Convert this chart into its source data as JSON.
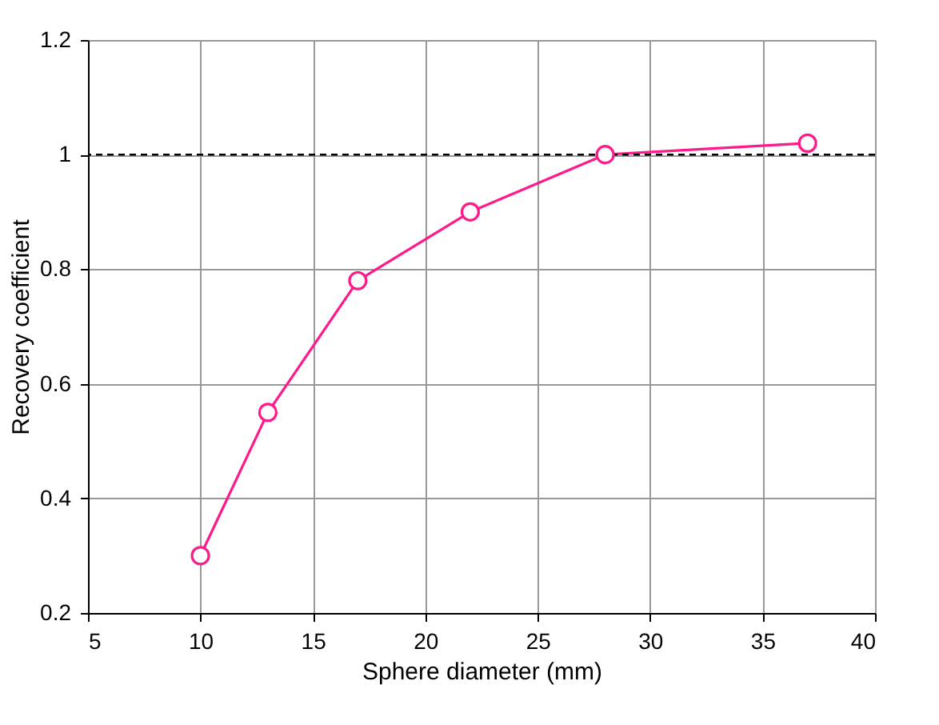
{
  "chart_data": {
    "type": "line",
    "xlabel": "Sphere diameter (mm)",
    "ylabel": "Recovery coefficient",
    "x": [
      10,
      13,
      17,
      22,
      28,
      37
    ],
    "series": [
      {
        "color": "#ff1a8c",
        "values": [
          0.3,
          0.55,
          0.78,
          0.9,
          1.0,
          1.02
        ]
      }
    ],
    "xlim": [
      5,
      40
    ],
    "xticks": [
      5,
      10,
      15,
      20,
      25,
      30,
      35,
      40
    ],
    "ylim": [
      0.2,
      1.2
    ],
    "yticks": [
      {
        "value": 0.2,
        "label": "0.2"
      },
      {
        "value": 0.4,
        "label": "0.4"
      },
      {
        "value": 0.6,
        "label": "0.6"
      },
      {
        "value": 0.8,
        "label": "0.8"
      },
      {
        "value": 1,
        "label": "1"
      },
      {
        "value": 1.2,
        "label": "1.2"
      }
    ],
    "ref_lines": [
      {
        "axis": "y",
        "value": 1,
        "color": "#000000",
        "line_style": "dashed"
      }
    ],
    "grid": true,
    "marker": "circle",
    "line_style": "solid"
  }
}
